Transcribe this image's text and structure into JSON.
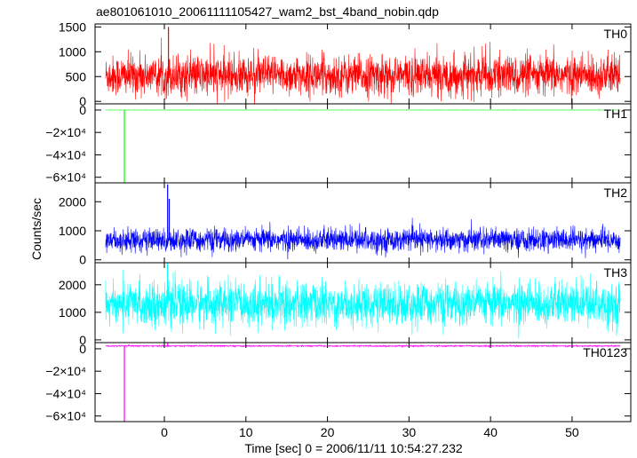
{
  "title": "ae801061010_20061111105427_wam2_bst_4band_nobin.qdp",
  "xlabel": "Time [sec] 0 = 2006/11/11 10:54:27.232",
  "ylabel": "Counts/sec",
  "x_tick_labels": [
    "0",
    "10",
    "20",
    "30",
    "40",
    "50"
  ],
  "chart_data": [
    {
      "type": "line",
      "name": "TH0",
      "color": "#ff0000",
      "xlim": [
        -8.5,
        57.2
      ],
      "ylim": [
        -50,
        1560
      ],
      "x_ticks": [
        0,
        10,
        20,
        30,
        40,
        50
      ],
      "y_ticks": [
        0,
        500,
        1000,
        1500
      ],
      "y_tick_labels": [
        "0",
        "500",
        "1000",
        "1500"
      ],
      "x_range": [
        -7.2,
        55.9
      ],
      "baseline": 520,
      "noise_sd": 200,
      "spikes": [
        {
          "x": 0.5,
          "y": 1500
        }
      ]
    },
    {
      "type": "line",
      "name": "TH1",
      "color": "#00ff00",
      "xlim": [
        -8.5,
        57.2
      ],
      "ylim": [
        -65000,
        5500
      ],
      "x_ticks": [
        0,
        10,
        20,
        30,
        40,
        50
      ],
      "y_ticks": [
        0,
        -20000,
        -40000,
        -60000
      ],
      "y_tick_labels": [
        "0",
        "−2×10⁴",
        "−4×10⁴",
        "−6×10⁴"
      ],
      "x_range": [
        -7.2,
        55.9
      ],
      "baseline": 0,
      "noise_sd": 60,
      "spikes": [
        {
          "x": -4.9,
          "y": -65000
        }
      ]
    },
    {
      "type": "line",
      "name": "TH2",
      "color": "#0000ff",
      "xlim": [
        -8.5,
        57.2
      ],
      "ylim": [
        -100,
        2650
      ],
      "x_ticks": [
        0,
        10,
        20,
        30,
        40,
        50
      ],
      "y_ticks": [
        0,
        1000,
        2000
      ],
      "y_tick_labels": [
        "0",
        "1000",
        "2000"
      ],
      "x_range": [
        -7.2,
        55.9
      ],
      "baseline": 680,
      "noise_sd": 200,
      "spikes": [
        {
          "x": 0.4,
          "y": 2600
        },
        {
          "x": 0.6,
          "y": 2100
        }
      ]
    },
    {
      "type": "line",
      "name": "TH3",
      "color": "#00ffff",
      "xlim": [
        -8.5,
        57.2
      ],
      "ylim": [
        -100,
        2800
      ],
      "x_ticks": [
        0,
        10,
        20,
        30,
        40,
        50
      ],
      "y_ticks": [
        0,
        1000,
        2000
      ],
      "y_tick_labels": [
        "0",
        "1000",
        "2000"
      ],
      "x_range": [
        -7.2,
        55.9
      ],
      "baseline": 1300,
      "noise_sd": 380,
      "spikes": [
        {
          "x": 0.4,
          "y": 2800
        }
      ]
    },
    {
      "type": "line",
      "name": "TH0123",
      "color": "#ff00ff",
      "xlim": [
        -8.5,
        57.2
      ],
      "ylim": [
        -65000,
        5500
      ],
      "x_ticks": [
        0,
        10,
        20,
        30,
        40,
        50
      ],
      "y_ticks": [
        0,
        -20000,
        -40000,
        -60000
      ],
      "y_tick_labels": [
        "0",
        "−2×10⁴",
        "−4×10⁴",
        "−6×10⁴"
      ],
      "x_range": [
        -7.2,
        55.9
      ],
      "baseline": 2500,
      "noise_sd": 300,
      "spikes": [
        {
          "x": -4.9,
          "y": -65000
        },
        {
          "x": 0.4,
          "y": 5000
        }
      ]
    }
  ]
}
